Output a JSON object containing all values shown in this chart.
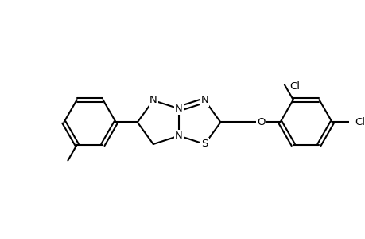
{
  "background_color": "#ffffff",
  "line_color": "#000000",
  "line_width": 1.5,
  "font_size": 9.5,
  "xlim": [
    0,
    10
  ],
  "ylim": [
    0,
    6.5
  ]
}
